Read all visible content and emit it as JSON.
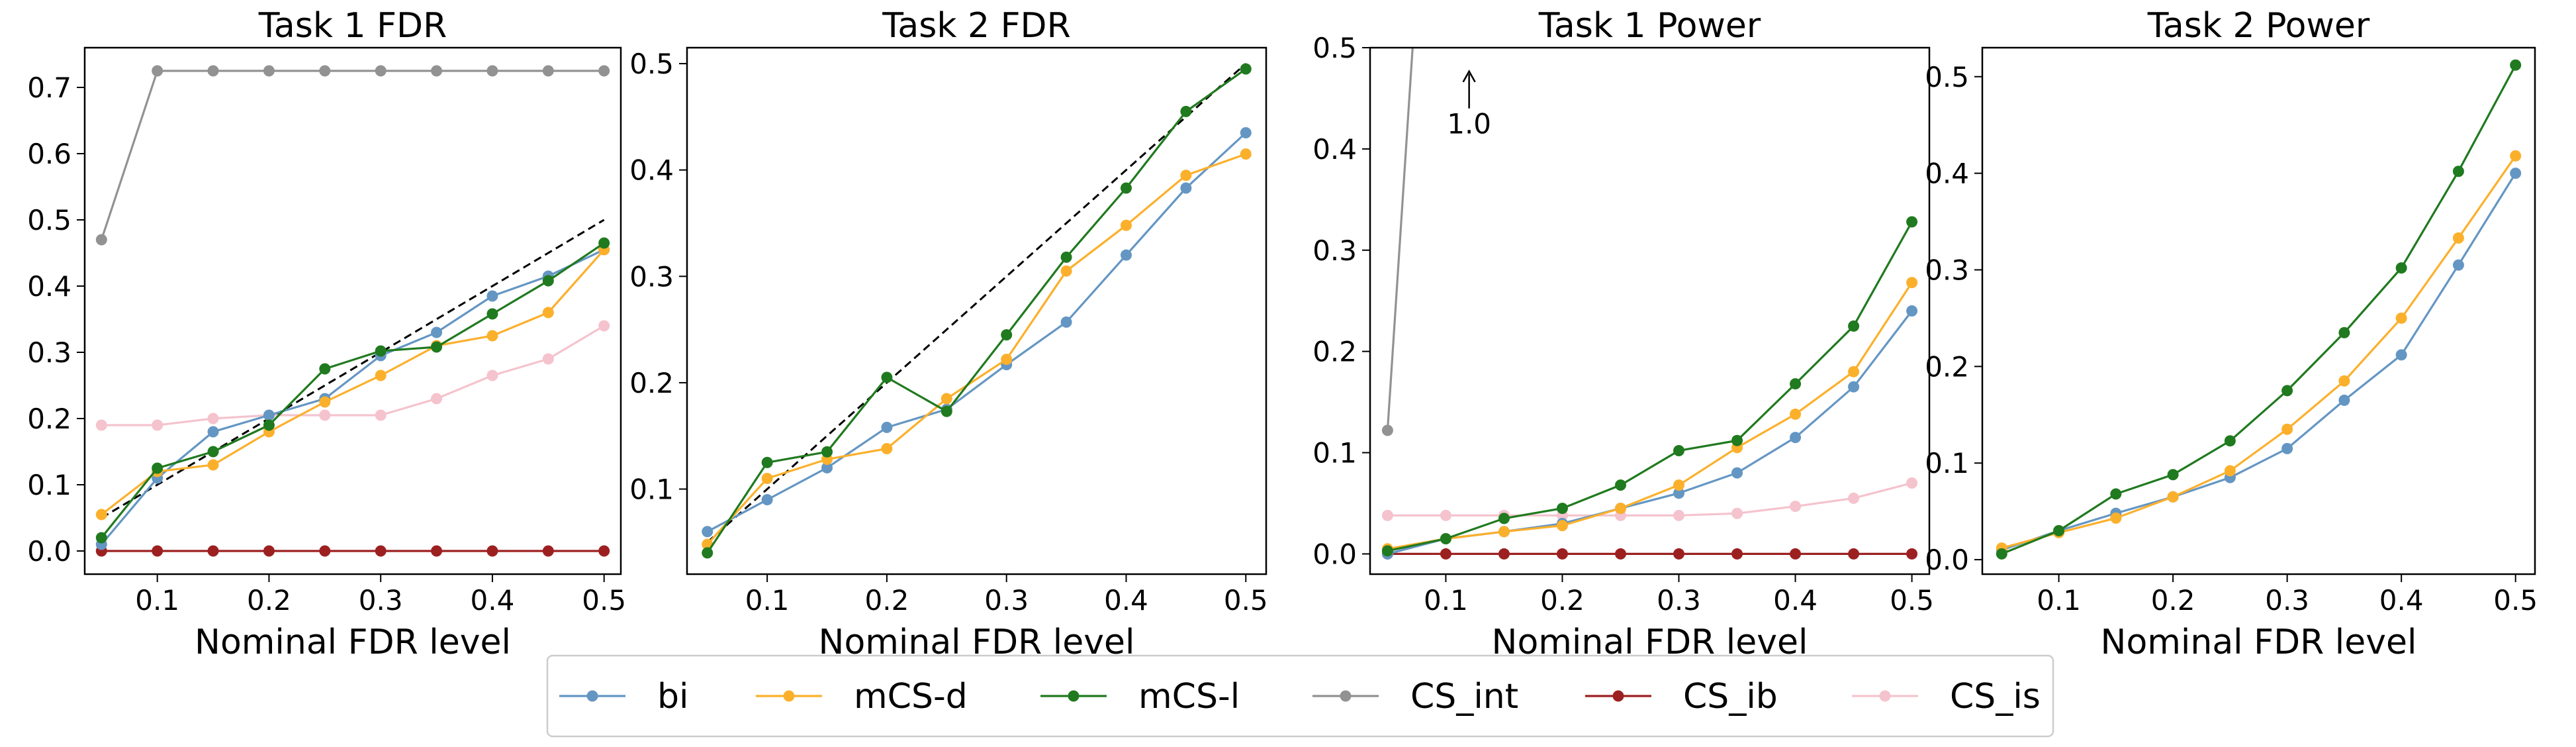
{
  "colors": {
    "bi": "#6496c3",
    "mCS-d": "#fbb02c",
    "mCS-l": "#207a1f",
    "CS_int": "#929292",
    "CS_ib": "#9d2021",
    "CS_is": "#f5c3cd",
    "reference": "#000000"
  },
  "legend": {
    "placement": "bottom-center",
    "items": [
      "bi",
      "mCS-d",
      "mCS-l",
      "CS_int",
      "CS_ib",
      "CS_is"
    ]
  },
  "chart_data": [
    {
      "type": "line",
      "title": "Task 1 FDR",
      "xlabel": "Nominal FDR level",
      "ylabel": "",
      "xlim": [
        0.035,
        0.515
      ],
      "ylim": [
        -0.035,
        0.76
      ],
      "xticks": [
        0.1,
        0.2,
        0.3,
        0.4,
        0.5
      ],
      "xtick_labels": [
        "0.1",
        "0.2",
        "0.3",
        "0.4",
        "0.5"
      ],
      "yticks": [
        0.0,
        0.1,
        0.2,
        0.3,
        0.4,
        0.5,
        0.6,
        0.7
      ],
      "ytick_labels": [
        "0.0",
        "0.1",
        "0.2",
        "0.3",
        "0.4",
        "0.5",
        "0.6",
        "0.7"
      ],
      "grid": false,
      "reference_line": [
        [
          0.05,
          0.05
        ],
        [
          0.5,
          0.5
        ]
      ],
      "x": [
        0.05,
        0.1,
        0.15,
        0.2,
        0.25,
        0.3,
        0.35,
        0.4,
        0.45,
        0.5
      ],
      "series": [
        {
          "name": "bi",
          "values": [
            0.01,
            0.11,
            0.18,
            0.205,
            0.23,
            0.295,
            0.33,
            0.385,
            0.415,
            0.455
          ]
        },
        {
          "name": "mCS-d",
          "values": [
            0.055,
            0.12,
            0.13,
            0.18,
            0.225,
            0.265,
            0.31,
            0.325,
            0.36,
            0.455
          ]
        },
        {
          "name": "mCS-l",
          "values": [
            0.02,
            0.125,
            0.15,
            0.19,
            0.275,
            0.302,
            0.308,
            0.358,
            0.408,
            0.465
          ]
        },
        {
          "name": "CS_int",
          "values": [
            0.47,
            0.725,
            0.725,
            0.725,
            0.725,
            0.725,
            0.725,
            0.725,
            0.725,
            0.725
          ]
        },
        {
          "name": "CS_ib",
          "values": [
            0.0,
            0.0,
            0.0,
            0.0,
            0.0,
            0.0,
            0.0,
            0.0,
            0.0,
            0.0
          ]
        },
        {
          "name": "CS_is",
          "values": [
            0.19,
            0.19,
            0.2,
            0.205,
            0.205,
            0.205,
            0.23,
            0.265,
            0.29,
            0.34
          ]
        }
      ]
    },
    {
      "type": "line",
      "title": "Task 2 FDR",
      "xlabel": "Nominal FDR level",
      "ylabel": "",
      "xlim": [
        0.033,
        0.517
      ],
      "ylim": [
        0.02,
        0.515
      ],
      "xticks": [
        0.1,
        0.2,
        0.3,
        0.4,
        0.5
      ],
      "xtick_labels": [
        "0.1",
        "0.2",
        "0.3",
        "0.4",
        "0.5"
      ],
      "yticks": [
        0.1,
        0.2,
        0.3,
        0.4,
        0.5
      ],
      "ytick_labels": [
        "0.1",
        "0.2",
        "0.3",
        "0.4",
        "0.5"
      ],
      "grid": false,
      "reference_line": [
        [
          0.05,
          0.05
        ],
        [
          0.5,
          0.5
        ]
      ],
      "x": [
        0.05,
        0.1,
        0.15,
        0.2,
        0.25,
        0.3,
        0.35,
        0.4,
        0.45,
        0.5
      ],
      "series": [
        {
          "name": "bi",
          "values": [
            0.06,
            0.09,
            0.12,
            0.158,
            0.175,
            0.217,
            0.257,
            0.32,
            0.383,
            0.435
          ]
        },
        {
          "name": "mCS-d",
          "values": [
            0.048,
            0.11,
            0.128,
            0.138,
            0.185,
            0.222,
            0.305,
            0.348,
            0.395,
            0.415
          ]
        },
        {
          "name": "mCS-l",
          "values": [
            0.04,
            0.125,
            0.135,
            0.205,
            0.173,
            0.245,
            0.318,
            0.383,
            0.455,
            0.495
          ]
        }
      ]
    },
    {
      "type": "line",
      "title": "Task 1 Power",
      "xlabel": "Nominal FDR level",
      "ylabel": "",
      "xlim": [
        0.035,
        0.515
      ],
      "ylim": [
        -0.02,
        0.5
      ],
      "xticks": [
        0.1,
        0.2,
        0.3,
        0.4,
        0.5
      ],
      "xtick_labels": [
        "0.1",
        "0.2",
        "0.3",
        "0.4",
        "0.5"
      ],
      "yticks": [
        0.0,
        0.1,
        0.2,
        0.3,
        0.4,
        0.5
      ],
      "ytick_labels": [
        "0.0",
        "0.1",
        "0.2",
        "0.3",
        "0.4",
        "0.5"
      ],
      "grid": false,
      "annotation": {
        "text": "1.0",
        "x": 0.12,
        "y": 0.44
      },
      "x": [
        0.05,
        0.1,
        0.15,
        0.2,
        0.25,
        0.3,
        0.35,
        0.4,
        0.45,
        0.5
      ],
      "series": [
        {
          "name": "bi",
          "values": [
            0.0,
            0.015,
            0.022,
            0.03,
            0.045,
            0.06,
            0.08,
            0.115,
            0.165,
            0.24
          ]
        },
        {
          "name": "mCS-d",
          "values": [
            0.005,
            0.015,
            0.022,
            0.028,
            0.045,
            0.068,
            0.105,
            0.138,
            0.18,
            0.268
          ]
        },
        {
          "name": "mCS-l",
          "values": [
            0.003,
            0.015,
            0.035,
            0.045,
            0.068,
            0.102,
            0.112,
            0.168,
            0.225,
            0.328
          ]
        },
        {
          "name": "CS_int",
          "values": [
            0.122,
            1.0,
            1.0,
            1.0,
            1.0,
            1.0,
            1.0,
            1.0,
            1.0,
            1.0
          ]
        },
        {
          "name": "CS_ib",
          "values": [
            0.0,
            0.0,
            0.0,
            0.0,
            0.0,
            0.0,
            0.0,
            0.0,
            0.0,
            0.0
          ]
        },
        {
          "name": "CS_is",
          "values": [
            0.038,
            0.038,
            0.038,
            0.038,
            0.038,
            0.038,
            0.04,
            0.047,
            0.055,
            0.07
          ]
        }
      ]
    },
    {
      "type": "line",
      "title": "Task 2 Power",
      "xlabel": "Nominal FDR level",
      "ylabel": "",
      "xlim": [
        0.033,
        0.517
      ],
      "ylim": [
        -0.015,
        0.53
      ],
      "xticks": [
        0.1,
        0.2,
        0.3,
        0.4,
        0.5
      ],
      "xtick_labels": [
        "0.1",
        "0.2",
        "0.3",
        "0.4",
        "0.5"
      ],
      "yticks": [
        0.0,
        0.1,
        0.2,
        0.3,
        0.4,
        0.5
      ],
      "ytick_labels": [
        "0.0",
        "0.1",
        "0.2",
        "0.3",
        "0.4",
        "0.5"
      ],
      "grid": false,
      "x": [
        0.05,
        0.1,
        0.15,
        0.2,
        0.25,
        0.3,
        0.35,
        0.4,
        0.45,
        0.5
      ],
      "series": [
        {
          "name": "bi",
          "values": [
            0.01,
            0.03,
            0.048,
            0.065,
            0.085,
            0.115,
            0.165,
            0.212,
            0.305,
            0.4
          ]
        },
        {
          "name": "mCS-d",
          "values": [
            0.012,
            0.028,
            0.043,
            0.065,
            0.092,
            0.135,
            0.185,
            0.25,
            0.333,
            0.418
          ]
        },
        {
          "name": "mCS-l",
          "values": [
            0.006,
            0.03,
            0.068,
            0.088,
            0.123,
            0.175,
            0.235,
            0.302,
            0.402,
            0.512
          ]
        }
      ]
    }
  ]
}
